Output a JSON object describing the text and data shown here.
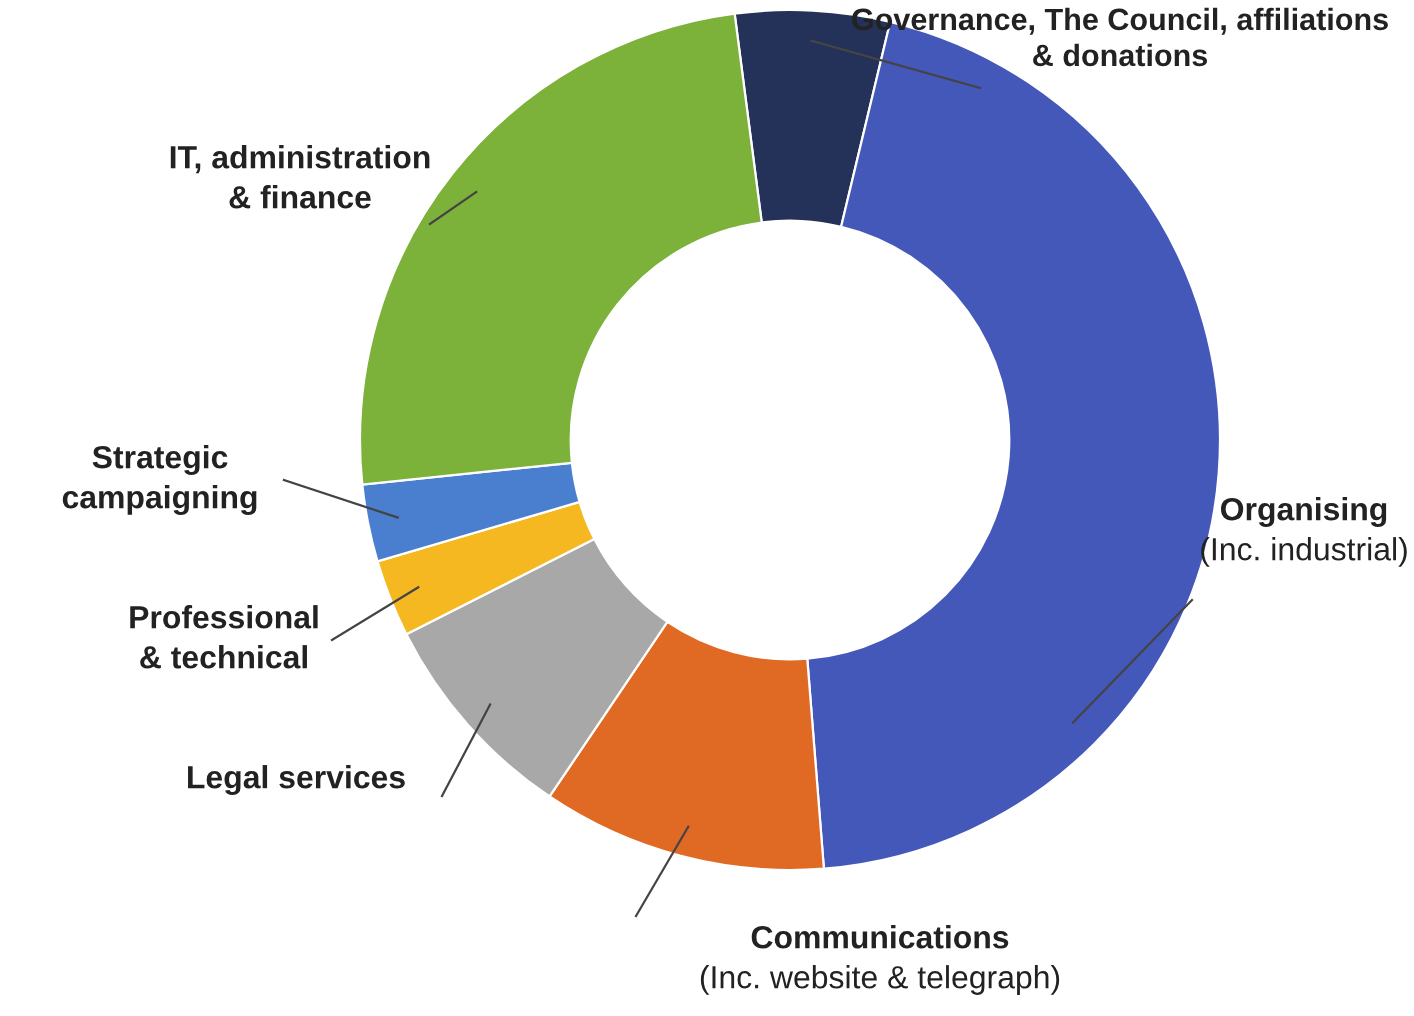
{
  "chart_data": {
    "type": "donut",
    "categories": [
      "Governance, The Council, affiliations\n& donations",
      "Organising\n(Inc. industrial)",
      "Communications\n(Inc. website & telegraph)",
      "Legal services",
      "Professional\n& technical",
      "Strategic\ncampaigning",
      "IT, administration\n& finance"
    ],
    "values": [
      5.8,
      45,
      10.7,
      8.1,
      2.9,
      2.9,
      24.6
    ],
    "colors": [
      "#24325a",
      "#4358b8",
      "#e06a24",
      "#a8a8a8",
      "#f5b820",
      "#4a7fcf",
      "#7cb13a"
    ]
  }
}
